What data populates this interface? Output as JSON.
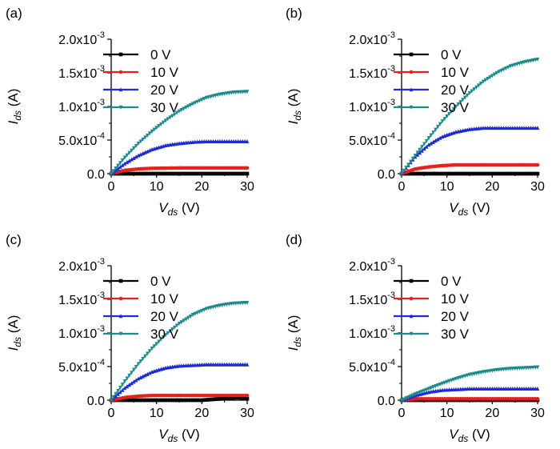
{
  "chart_data": [
    {
      "type": "line",
      "panel_label": "(a)",
      "xlabel": {
        "main": "V",
        "sub": "ds",
        "unit": "(V)"
      },
      "ylabel": {
        "main": "I",
        "sub": "ds",
        "unit": "(A)"
      },
      "xlim": [
        0,
        30
      ],
      "ylim": [
        0,
        0.002
      ],
      "xticks": [
        "0",
        "10",
        "20",
        "30"
      ],
      "yticks": [
        {
          "mant": "0.0",
          "exp": ""
        },
        {
          "mant": "5.0x10",
          "exp": "-4"
        },
        {
          "mant": "1.0x10",
          "exp": "-3"
        },
        {
          "mant": "1.5x10",
          "exp": "-3"
        },
        {
          "mant": "2.0x10",
          "exp": "-3"
        }
      ],
      "legend_position": "top-left",
      "series": [
        {
          "name": "0 V",
          "color": "#000000",
          "marker": "square",
          "x": [
            0,
            30
          ],
          "y": [
            0,
            0
          ]
        },
        {
          "name": "10 V",
          "color": "#e8201c",
          "marker": "circle",
          "x": [
            0,
            3,
            6,
            9,
            12,
            15,
            18,
            21,
            24,
            27,
            30
          ],
          "y": [
            0,
            5e-05,
            7e-05,
            8e-05,
            8.3e-05,
            8.5e-05,
            8.5e-05,
            8.5e-05,
            8.5e-05,
            8.5e-05,
            8.5e-05
          ]
        },
        {
          "name": "20 V",
          "color": "#1f2bd6",
          "marker": "triangle",
          "x": [
            0,
            3,
            6,
            9,
            12,
            15,
            18,
            21,
            24,
            27,
            30
          ],
          "y": [
            0,
            0.00015,
            0.00027,
            0.00036,
            0.00042,
            0.00045,
            0.00047,
            0.00048,
            0.00048,
            0.00048,
            0.00048
          ]
        },
        {
          "name": "30 V",
          "color": "#1d8b8b",
          "marker": "triangle-down",
          "x": [
            0,
            3,
            6,
            9,
            12,
            15,
            18,
            21,
            24,
            27,
            30
          ],
          "y": [
            0,
            0.00024,
            0.00045,
            0.00063,
            0.00079,
            0.00093,
            0.00104,
            0.00113,
            0.00118,
            0.00121,
            0.00122
          ]
        }
      ]
    },
    {
      "type": "line",
      "panel_label": "(b)",
      "xlabel": {
        "main": "V",
        "sub": "ds",
        "unit": "(V)"
      },
      "ylabel": {
        "main": "I",
        "sub": "ds",
        "unit": "(A)"
      },
      "xlim": [
        0,
        30
      ],
      "ylim": [
        0,
        0.002
      ],
      "xticks": [
        "0",
        "10",
        "20",
        "30"
      ],
      "yticks": [
        {
          "mant": "0.0",
          "exp": ""
        },
        {
          "mant": "5.0x10",
          "exp": "-4"
        },
        {
          "mant": "1.0x10",
          "exp": "-3"
        },
        {
          "mant": "1.5x10",
          "exp": "-3"
        },
        {
          "mant": "2.0x10",
          "exp": "-3"
        }
      ],
      "legend_position": "top-left",
      "series": [
        {
          "name": "0 V",
          "color": "#000000",
          "marker": "square",
          "x": [
            0,
            30
          ],
          "y": [
            0,
            0
          ]
        },
        {
          "name": "10 V",
          "color": "#e8201c",
          "marker": "circle",
          "x": [
            0,
            3,
            6,
            9,
            12,
            15,
            18,
            21,
            24,
            27,
            30
          ],
          "y": [
            0,
            7e-05,
            0.0001,
            0.00012,
            0.00013,
            0.00013,
            0.00013,
            0.00013,
            0.00013,
            0.00013,
            0.00013
          ]
        },
        {
          "name": "20 V",
          "color": "#1f2bd6",
          "marker": "triangle",
          "x": [
            0,
            3,
            6,
            9,
            12,
            15,
            18,
            21,
            24,
            27,
            30
          ],
          "y": [
            0,
            0.00025,
            0.00043,
            0.00055,
            0.00062,
            0.00066,
            0.00068,
            0.00068,
            0.00068,
            0.00068,
            0.00068
          ]
        },
        {
          "name": "30 V",
          "color": "#1d8b8b",
          "marker": "triangle-down",
          "x": [
            0,
            3,
            6,
            9,
            12,
            15,
            18,
            21,
            24,
            27,
            30
          ],
          "y": [
            0,
            0.00027,
            0.00053,
            0.00078,
            0.001,
            0.0012,
            0.00137,
            0.0015,
            0.0016,
            0.00166,
            0.0017
          ]
        }
      ]
    },
    {
      "type": "line",
      "panel_label": "(c)",
      "xlabel": {
        "main": "V",
        "sub": "ds",
        "unit": "(V)"
      },
      "ylabel": {
        "main": "I",
        "sub": "ds",
        "unit": "(A)"
      },
      "xlim": [
        0,
        30
      ],
      "ylim": [
        0,
        0.002
      ],
      "xticks": [
        "0",
        "10",
        "20",
        "30"
      ],
      "yticks": [
        {
          "mant": "0.0",
          "exp": ""
        },
        {
          "mant": "5.0x10",
          "exp": "-4"
        },
        {
          "mant": "1.0x10",
          "exp": "-3"
        },
        {
          "mant": "1.5x10",
          "exp": "-3"
        },
        {
          "mant": "2.0x10",
          "exp": "-3"
        }
      ],
      "legend_position": "top-left",
      "series": [
        {
          "name": "0 V",
          "color": "#000000",
          "marker": "square",
          "x": [
            0,
            20,
            24,
            28,
            30
          ],
          "y": [
            0,
            0,
            2e-05,
            4e-05,
            2e-05
          ]
        },
        {
          "name": "10 V",
          "color": "#e8201c",
          "marker": "circle",
          "x": [
            0,
            3,
            6,
            9,
            12,
            15,
            18,
            21,
            24,
            27,
            30
          ],
          "y": [
            0,
            4e-05,
            6e-05,
            7e-05,
            7e-05,
            7e-05,
            7e-05,
            7e-05,
            7e-05,
            7e-05,
            7e-05
          ]
        },
        {
          "name": "20 V",
          "color": "#1f2bd6",
          "marker": "triangle",
          "x": [
            0,
            3,
            6,
            9,
            12,
            15,
            18,
            21,
            24,
            27,
            30
          ],
          "y": [
            0,
            0.00018,
            0.00032,
            0.00042,
            0.00048,
            0.00051,
            0.00052,
            0.00053,
            0.00053,
            0.00053,
            0.00053
          ]
        },
        {
          "name": "30 V",
          "color": "#1d8b8b",
          "marker": "triangle-down",
          "x": [
            0,
            3,
            6,
            9,
            12,
            15,
            18,
            21,
            24,
            27,
            30
          ],
          "y": [
            0,
            0.00028,
            0.00054,
            0.00077,
            0.00097,
            0.00114,
            0.00127,
            0.00136,
            0.00141,
            0.00144,
            0.00145
          ]
        }
      ]
    },
    {
      "type": "line",
      "panel_label": "(d)",
      "xlabel": {
        "main": "V",
        "sub": "ds",
        "unit": "(V)"
      },
      "ylabel": {
        "main": "I",
        "sub": "ds",
        "unit": "(A)"
      },
      "xlim": [
        0,
        30
      ],
      "ylim": [
        0,
        0.002
      ],
      "xticks": [
        "0",
        "10",
        "20",
        "30"
      ],
      "yticks": [
        {
          "mant": "0.0",
          "exp": ""
        },
        {
          "mant": "5.0x10",
          "exp": "-4"
        },
        {
          "mant": "1.0x10",
          "exp": "-3"
        },
        {
          "mant": "1.5x10",
          "exp": "-3"
        },
        {
          "mant": "2.0x10",
          "exp": "-3"
        }
      ],
      "legend_position": "top-left",
      "series": [
        {
          "name": "0 V",
          "color": "#000000",
          "marker": "square",
          "x": [
            0,
            30
          ],
          "y": [
            0,
            0
          ]
        },
        {
          "name": "10 V",
          "color": "#e8201c",
          "marker": "circle",
          "x": [
            0,
            3,
            6,
            9,
            12,
            15,
            18,
            21,
            24,
            27,
            30
          ],
          "y": [
            0,
            2e-05,
            2e-05,
            2e-05,
            2e-05,
            2e-05,
            2e-05,
            2e-05,
            2e-05,
            2e-05,
            2e-05
          ]
        },
        {
          "name": "20 V",
          "color": "#1f2bd6",
          "marker": "triangle",
          "x": [
            0,
            3,
            6,
            9,
            12,
            15,
            18,
            21,
            24,
            27,
            30
          ],
          "y": [
            0,
            7e-05,
            0.00012,
            0.00015,
            0.00016,
            0.00017,
            0.00017,
            0.00017,
            0.00017,
            0.00017,
            0.00017
          ]
        },
        {
          "name": "30 V",
          "color": "#1d8b8b",
          "marker": "triangle-down",
          "x": [
            0,
            3,
            6,
            9,
            12,
            15,
            18,
            21,
            24,
            27,
            30
          ],
          "y": [
            0,
            9e-05,
            0.00017,
            0.00025,
            0.00032,
            0.00038,
            0.00042,
            0.00045,
            0.00047,
            0.00048,
            0.00049
          ]
        }
      ]
    }
  ]
}
